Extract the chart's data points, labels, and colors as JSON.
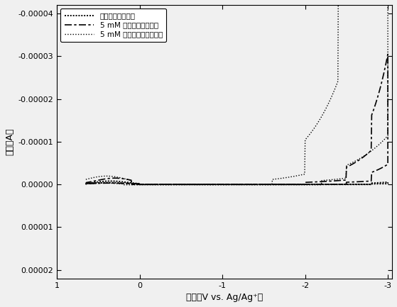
{
  "title": "",
  "xlabel": "電位（V vs. Ag/Ag⁺）",
  "ylabel": "電流（A）",
  "xlim": [
    0.68,
    -3.05
  ],
  "ylim": [
    2.2e-05,
    -4.2e-05
  ],
  "xticks": [
    1,
    0,
    -1,
    -2,
    -3
  ],
  "yticks": [
    -4e-05,
    -3e-05,
    -2e-05,
    -1e-05,
    0.0,
    1e-05,
    2e-05
  ],
  "legend_labels": [
    "5 mM メチルアクリレート",
    "5 mM アクリロニトリル",
    "バックグラウンド"
  ],
  "line_colors": [
    "#000000",
    "#000000",
    "#000000"
  ],
  "background_color": "#f0f0f0",
  "axes_color": "#000000",
  "font_size": 9,
  "legend_fontsize": 7.5
}
